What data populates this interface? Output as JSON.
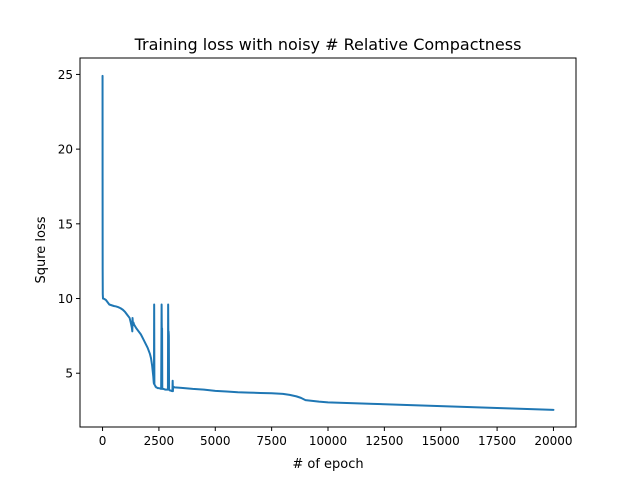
{
  "chart_data": {
    "type": "line",
    "title": "Training loss with noisy # Relative Compactness",
    "xlabel": "# of epoch",
    "ylabel": "Squre loss",
    "xlim": [
      -1000,
      21000
    ],
    "ylim": [
      1.4,
      26.1
    ],
    "xticks": [
      0,
      2500,
      5000,
      7500,
      10000,
      12500,
      15000,
      17500,
      20000
    ],
    "xtick_labels": [
      "0",
      "2500",
      "5000",
      "7500",
      "10000",
      "12500",
      "15000",
      "17500",
      "20000"
    ],
    "yticks": [
      5,
      10,
      15,
      20,
      25
    ],
    "ytick_labels": [
      "5",
      "10",
      "15",
      "20",
      "25"
    ],
    "grid": false,
    "series": [
      {
        "name": "",
        "color": "#1f77b4",
        "x": [
          0,
          2,
          5,
          10,
          20,
          40,
          60,
          100,
          150,
          200,
          250,
          300,
          400,
          500,
          600,
          700,
          800,
          900,
          1000,
          1100,
          1200,
          1250,
          1300,
          1320,
          1330,
          1350,
          1370,
          1400,
          1500,
          1600,
          1700,
          1800,
          1900,
          2000,
          2100,
          2150,
          2200,
          2250,
          2270,
          2280,
          2290,
          2300,
          2320,
          2340,
          2350,
          2360,
          2370,
          2380,
          2400,
          2450,
          2500,
          2550,
          2600,
          2620,
          2630,
          2640,
          2650,
          2660,
          2700,
          2750,
          2800,
          2850,
          2900,
          2910,
          2920,
          2930,
          2940,
          2950,
          2960,
          2980,
          3000,
          3050,
          3100,
          3110,
          3120,
          3130,
          3200,
          3500,
          4000,
          4500,
          5000,
          5500,
          6000,
          6500,
          7000,
          7500,
          8000,
          8300,
          8600,
          8800,
          9000,
          9300,
          9600,
          10000,
          11000,
          12000,
          13000,
          14000,
          15000,
          16000,
          17000,
          18000,
          19000,
          20000
        ],
        "y": [
          24.9,
          18.0,
          12.0,
          10.3,
          10.0,
          10.0,
          9.98,
          9.95,
          9.9,
          9.8,
          9.7,
          9.6,
          9.55,
          9.5,
          9.47,
          9.42,
          9.35,
          9.25,
          9.1,
          8.9,
          8.7,
          8.4,
          8.05,
          7.8,
          8.7,
          8.2,
          8.4,
          8.25,
          8.0,
          7.8,
          7.6,
          7.3,
          7.0,
          6.7,
          6.3,
          6.0,
          5.5,
          4.8,
          4.4,
          4.3,
          9.6,
          4.25,
          4.2,
          4.15,
          4.1,
          4.1,
          4.08,
          4.05,
          4.05,
          4.0,
          4.0,
          3.98,
          3.95,
          9.6,
          7.5,
          8.0,
          3.95,
          3.95,
          3.95,
          3.92,
          3.9,
          3.9,
          3.9,
          9.6,
          7.2,
          7.8,
          7.5,
          3.9,
          3.88,
          3.85,
          3.85,
          3.82,
          3.8,
          4.5,
          3.8,
          4.1,
          4.05,
          4.02,
          3.95,
          3.9,
          3.82,
          3.78,
          3.73,
          3.7,
          3.68,
          3.66,
          3.62,
          3.55,
          3.45,
          3.35,
          3.2,
          3.15,
          3.1,
          3.05,
          3.0,
          2.95,
          2.9,
          2.85,
          2.8,
          2.75,
          2.7,
          2.65,
          2.6,
          2.55
        ]
      }
    ]
  }
}
